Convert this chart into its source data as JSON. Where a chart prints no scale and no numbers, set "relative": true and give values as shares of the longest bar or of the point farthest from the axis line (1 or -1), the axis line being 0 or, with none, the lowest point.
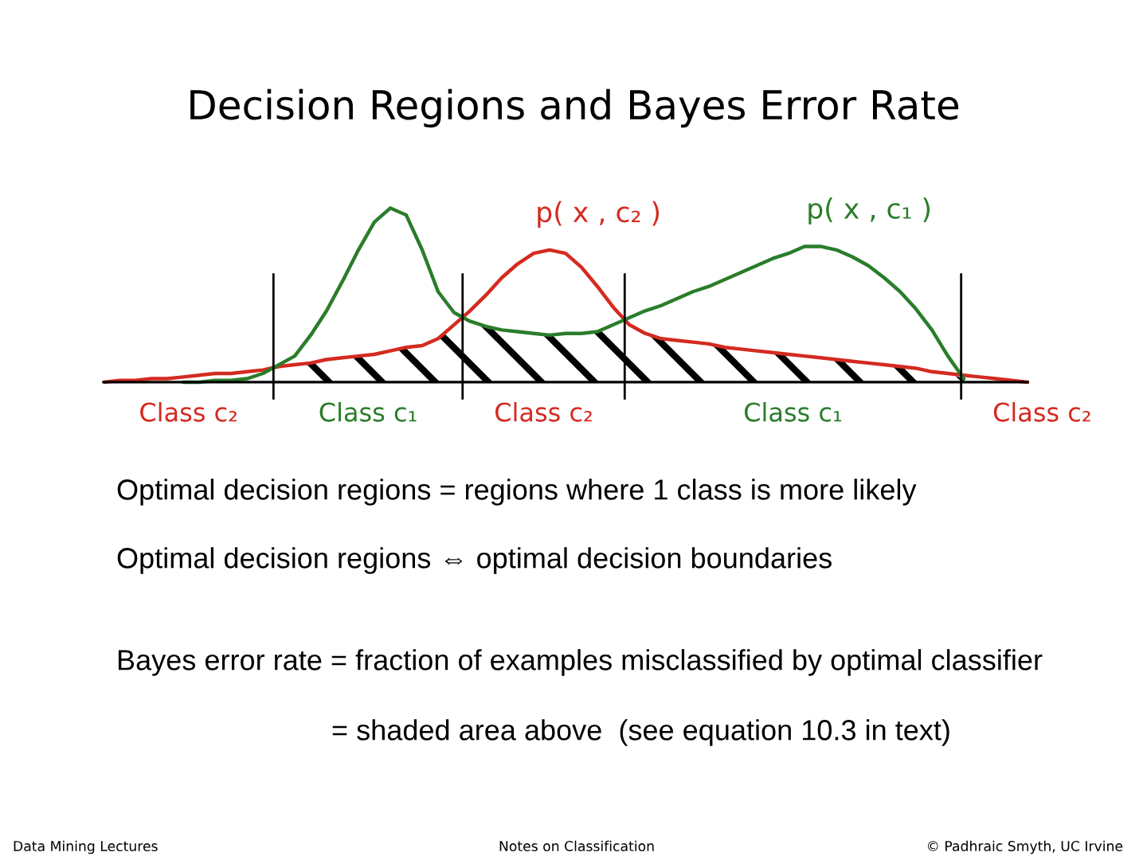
{
  "chart_data": {
    "type": "line",
    "title": "Decision Regions and Bayes Error Rate",
    "relative": true,
    "categories": [
      null,
      null,
      null,
      null,
      null,
      null,
      null,
      null,
      null,
      null,
      null,
      null,
      null,
      null,
      null,
      null,
      null,
      null,
      null,
      null,
      null,
      null,
      null,
      null,
      null,
      null,
      null,
      null,
      null,
      null,
      null,
      null,
      null,
      null,
      null,
      null,
      null,
      null,
      null,
      null,
      null,
      null,
      null,
      null,
      null,
      null,
      null,
      null,
      null,
      null,
      null,
      null,
      null,
      null,
      null,
      null,
      null,
      null,
      null
    ],
    "series": [
      {
        "name": "p( x , c₂ )",
        "color": "#d42a20",
        "values": [
          0.0,
          0.01,
          0.01,
          0.02,
          0.02,
          0.03,
          0.04,
          0.05,
          0.05,
          0.06,
          0.07,
          0.09,
          0.1,
          0.11,
          0.13,
          0.14,
          0.15,
          0.16,
          0.18,
          0.2,
          0.21,
          0.25,
          0.33,
          0.41,
          0.5,
          0.6,
          0.68,
          0.74,
          0.76,
          0.74,
          0.66,
          0.55,
          0.43,
          0.33,
          0.28,
          0.25,
          0.24,
          0.23,
          0.22,
          0.2,
          0.19,
          0.18,
          0.17,
          0.16,
          0.15,
          0.14,
          0.13,
          0.12,
          0.11,
          0.1,
          0.09,
          0.08,
          0.06,
          0.05,
          0.04,
          0.03,
          0.02,
          0.01,
          0.0
        ]
      },
      {
        "name": "p( x , c₁ )",
        "color": "#2a7d2a",
        "values": [
          null,
          null,
          null,
          null,
          null,
          0.0,
          0.0,
          0.01,
          0.01,
          0.02,
          0.05,
          0.1,
          0.15,
          0.27,
          0.41,
          0.58,
          0.76,
          0.92,
          1.0,
          0.96,
          0.76,
          0.52,
          0.4,
          0.35,
          0.32,
          0.3,
          0.29,
          0.28,
          0.27,
          0.28,
          0.28,
          0.29,
          0.33,
          0.37,
          0.41,
          0.44,
          0.48,
          0.52,
          0.55,
          0.59,
          0.63,
          0.67,
          0.71,
          0.74,
          0.78,
          0.78,
          0.76,
          0.72,
          0.67,
          0.6,
          0.52,
          0.42,
          0.3,
          0.15,
          0.02,
          null,
          null,
          null,
          null
        ]
      },
      {
        "type": "area",
        "color": "#000000",
        "values": [
          null,
          null,
          null,
          null,
          null,
          null,
          null,
          null,
          null,
          null,
          null,
          0.09,
          0.1,
          0.11,
          0.13,
          0.14,
          0.15,
          0.16,
          0.18,
          0.2,
          0.21,
          0.25,
          0.33,
          0.35,
          0.32,
          0.3,
          0.29,
          0.28,
          0.27,
          0.28,
          0.28,
          0.29,
          0.33,
          0.33,
          0.28,
          0.25,
          0.24,
          0.23,
          0.22,
          0.2,
          0.19,
          0.18,
          0.17,
          0.16,
          0.15,
          0.14,
          0.13,
          0.12,
          0.11,
          0.1,
          0.09,
          0.08,
          0.06,
          0.05,
          0.02,
          null,
          null,
          null,
          null
        ]
      }
    ],
    "annotations": [
      "Class c₂",
      "Class c₁",
      "Class c₂",
      "Class c₁",
      "Class c₂",
      "Optimal decision regions = regions where 1 class is more likely",
      "Optimal decision regions ⇔ optimal decision boundaries",
      "Bayes error rate = fraction of examples misclassified by optimal classifier",
      "= shaded area above  (see equation 10.3 in text)",
      "Data Mining Lectures",
      "Notes on Classification",
      "© Padhraic Smyth, UC Irvine"
    ]
  }
}
